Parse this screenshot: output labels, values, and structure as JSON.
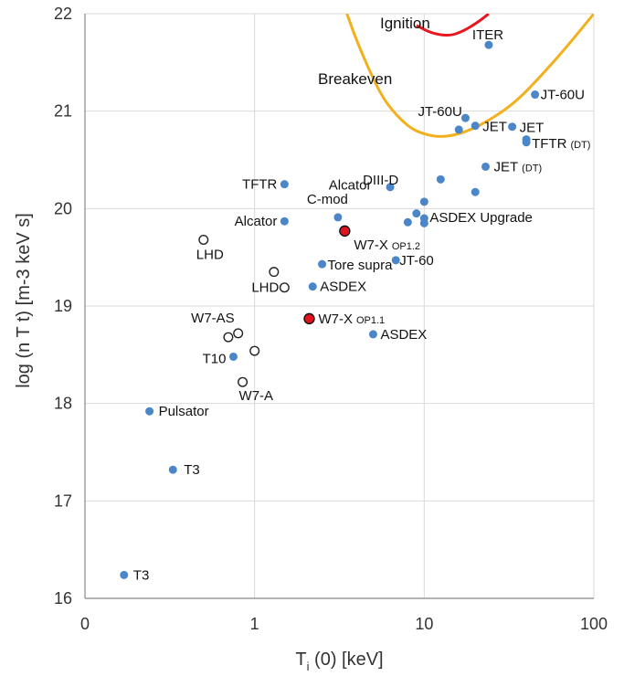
{
  "chart_data": {
    "type": "scatter",
    "xlabel": {
      "main": "T",
      "sub": "i",
      "rest": " (0) [keV]"
    },
    "ylabel": "log (n T t)  [m-3 keV s]",
    "xscale": "log",
    "xlim": [
      0.1,
      100
    ],
    "ylim": [
      16,
      22
    ],
    "x_tick_labels": [
      "0",
      "1",
      "10",
      "100"
    ],
    "y_ticks": [
      16,
      17,
      18,
      19,
      20,
      21,
      22
    ],
    "grid": true,
    "colors": {
      "filled": "#4a86c8",
      "open_edge": "#222222",
      "w7x_fill": "#e0141e",
      "breakeven": "#f2b01e",
      "ignition": "#e8161e"
    },
    "points": [
      {
        "x": 0.17,
        "y": 16.24,
        "style": "filled",
        "label": "T3"
      },
      {
        "x": 0.33,
        "y": 17.32,
        "style": "filled",
        "label": "T3"
      },
      {
        "x": 0.24,
        "y": 17.92,
        "style": "filled",
        "label": "Pulsator"
      },
      {
        "x": 0.75,
        "y": 18.48,
        "style": "filled",
        "label": "T10"
      },
      {
        "x": 0.85,
        "y": 18.22,
        "style": "open",
        "label": "W7-A"
      },
      {
        "x": 0.7,
        "y": 18.68,
        "style": "open",
        "label": ""
      },
      {
        "x": 0.8,
        "y": 18.72,
        "style": "open",
        "label": "W7-AS"
      },
      {
        "x": 1.0,
        "y": 18.54,
        "style": "open",
        "label": ""
      },
      {
        "x": 0.5,
        "y": 19.68,
        "style": "open",
        "label": "LHD"
      },
      {
        "x": 1.3,
        "y": 19.35,
        "style": "open",
        "label": ""
      },
      {
        "x": 1.5,
        "y": 19.19,
        "style": "open",
        "label": "LHD"
      },
      {
        "x": 1.5,
        "y": 20.25,
        "style": "filled",
        "label": "TFTR"
      },
      {
        "x": 1.5,
        "y": 19.87,
        "style": "filled",
        "label": "Alcator"
      },
      {
        "x": 3.1,
        "y": 19.91,
        "style": "filled",
        "label": "C-mod"
      },
      {
        "x": 2.5,
        "y": 19.43,
        "style": "filled",
        "label": "Tore supra"
      },
      {
        "x": 2.2,
        "y": 19.2,
        "style": "filled",
        "label": "ASDEX"
      },
      {
        "x": 5.0,
        "y": 18.71,
        "style": "filled",
        "label": "ASDEX"
      },
      {
        "x": 6.8,
        "y": 19.47,
        "style": "filled",
        "label": "JT-60"
      },
      {
        "x": 6.3,
        "y": 20.22,
        "style": "filled",
        "label": "DIII-D"
      },
      {
        "x": 12.5,
        "y": 20.3,
        "style": "filled",
        "label": ""
      },
      {
        "x": 8.0,
        "y": 19.86,
        "style": "filled",
        "label": ""
      },
      {
        "x": 9.0,
        "y": 19.95,
        "style": "filled",
        "label": ""
      },
      {
        "x": 10.0,
        "y": 19.9,
        "style": "filled",
        "label": ""
      },
      {
        "x": 10.0,
        "y": 19.85,
        "style": "filled",
        "label": ""
      },
      {
        "x": 10.0,
        "y": 20.07,
        "style": "filled",
        "label": "ASDEX Upgrade"
      },
      {
        "x": 20.0,
        "y": 20.17,
        "style": "filled",
        "label": ""
      },
      {
        "x": 23.0,
        "y": 20.43,
        "style": "filled",
        "label": "JET",
        "label_sub": "(DT)"
      },
      {
        "x": 16.0,
        "y": 20.81,
        "style": "filled",
        "label": ""
      },
      {
        "x": 17.5,
        "y": 20.93,
        "style": "filled",
        "label": "JT-60U"
      },
      {
        "x": 20.0,
        "y": 20.85,
        "style": "filled",
        "label": "JET"
      },
      {
        "x": 33.0,
        "y": 20.84,
        "style": "filled",
        "label": "JET"
      },
      {
        "x": 40.0,
        "y": 20.71,
        "style": "filled",
        "label": ""
      },
      {
        "x": 40.0,
        "y": 20.68,
        "style": "filled",
        "label": "TFTR",
        "label_sub": "(DT)"
      },
      {
        "x": 45.0,
        "y": 21.17,
        "style": "filled",
        "label": "JT-60U"
      },
      {
        "x": 24.0,
        "y": 21.68,
        "style": "filled",
        "label": "ITER"
      },
      {
        "x": 3.4,
        "y": 19.77,
        "style": "w7x",
        "label": "W7-X",
        "label_sub": "OP1.2"
      },
      {
        "x": 2.1,
        "y": 18.87,
        "style": "w7x",
        "label": "W7-X",
        "label_sub": "OP1.1"
      }
    ],
    "extra_labels": [
      {
        "x": 1.4,
        "y": 20.25,
        "label": "Alcator"
      }
    ],
    "curves": [
      {
        "name": "Breakeven",
        "points": [
          [
            3.5,
            22.0
          ],
          [
            4.0,
            21.72
          ],
          [
            5.0,
            21.33
          ],
          [
            6.0,
            21.07
          ],
          [
            8.0,
            20.84
          ],
          [
            10.0,
            20.76
          ],
          [
            13.0,
            20.73
          ],
          [
            18.0,
            20.79
          ],
          [
            25.0,
            20.92
          ],
          [
            35.0,
            21.1
          ],
          [
            50.0,
            21.38
          ],
          [
            70.0,
            21.67
          ],
          [
            100.0,
            22.0
          ]
        ]
      },
      {
        "name": "Ignition",
        "points": [
          [
            9.0,
            21.88
          ],
          [
            11.0,
            21.8
          ],
          [
            14.0,
            21.77
          ],
          [
            17.0,
            21.82
          ],
          [
            21.0,
            21.92
          ],
          [
            24.0,
            22.0
          ]
        ]
      }
    ]
  }
}
